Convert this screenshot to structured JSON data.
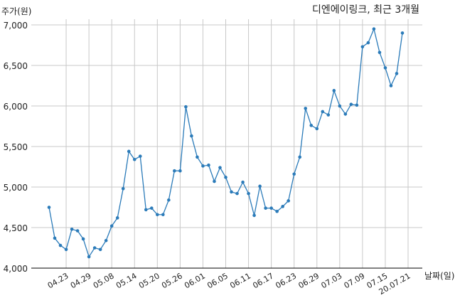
{
  "chart_data": {
    "type": "line",
    "title": "디엔에이링크, 최근 3개월",
    "ylabel": "주가(원)",
    "xlabel": "날짜(일)",
    "ylim": [
      4000,
      7000
    ],
    "y_ticks": [
      4000,
      4500,
      5000,
      5500,
      6000,
      6500,
      7000
    ],
    "y_tick_labels": [
      "4,000",
      "4,500",
      "5,000",
      "5,500",
      "6,000",
      "6,500",
      "7,000"
    ],
    "x_tick_labels": [
      "04.23",
      "04.29",
      "05.08",
      "05.14",
      "05.20",
      "05.26",
      "06.01",
      "06.05",
      "06.11",
      "06.17",
      "06.23",
      "06.29",
      "07.03",
      "07.09",
      "07.15",
      "20.07.21"
    ],
    "x_tick_positions": [
      3,
      7,
      11,
      15,
      19,
      23,
      27,
      31,
      35,
      39,
      43,
      47,
      51,
      55,
      59,
      63
    ],
    "grid": true,
    "series": [
      {
        "values": [
          4750,
          4370,
          4280,
          4230,
          4480,
          4460,
          4360,
          4140,
          4250,
          4230,
          4340,
          4520,
          4620,
          4980,
          5440,
          5340,
          5380,
          4720,
          4740,
          4660,
          4660,
          4840,
          5200,
          5200,
          5990,
          5630,
          5370,
          5260,
          5270,
          5070,
          5240,
          5120,
          4940,
          4920,
          5060,
          4920,
          4650,
          5010,
          4740,
          4740,
          4700,
          4760,
          4830,
          5160,
          5370,
          5970,
          5760,
          5720,
          5930,
          5890,
          6190,
          6000,
          5900,
          6020,
          6010,
          6730,
          6780,
          6950,
          6660,
          6470,
          6250,
          6400,
          6900
        ],
        "color": "#2b7bb9"
      }
    ]
  }
}
